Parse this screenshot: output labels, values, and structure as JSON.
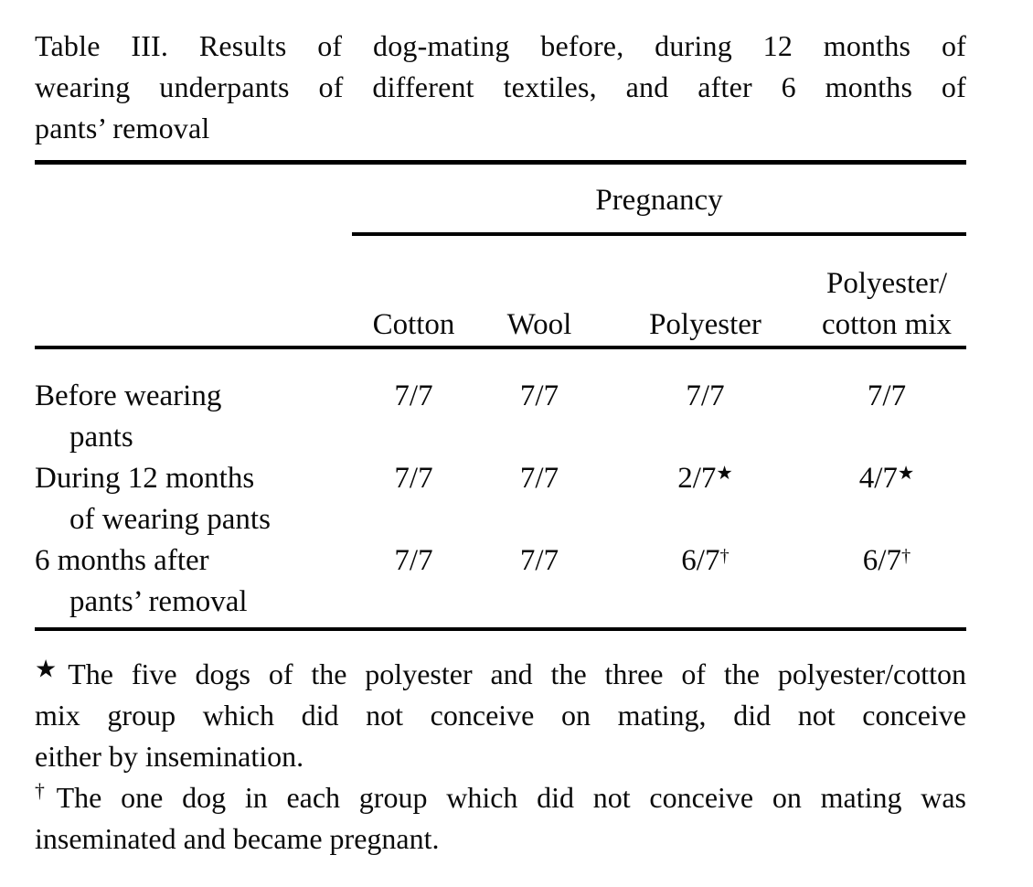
{
  "colors": {
    "background": "#ffffff",
    "text": "#0a0a0a",
    "rule": "#000000"
  },
  "title": {
    "lines": [
      "Table III. Results of dog-mating before, during 12 months of",
      "wearing underpants of different textiles, and after 6 months of",
      "pants’ removal"
    ]
  },
  "table": {
    "spanner": "Pregnancy",
    "columns": [
      {
        "line1": "",
        "line2": "Cotton"
      },
      {
        "line1": "",
        "line2": "Wool"
      },
      {
        "line1": "",
        "line2": "Polyester"
      },
      {
        "line1": "Polyester/",
        "line2": "cotton mix"
      }
    ],
    "rows": [
      {
        "label_line1": "Before wearing",
        "label_line2": "pants",
        "values": [
          {
            "v": "7/7",
            "sup": ""
          },
          {
            "v": "7/7",
            "sup": ""
          },
          {
            "v": "7/7",
            "sup": ""
          },
          {
            "v": "7/7",
            "sup": ""
          }
        ]
      },
      {
        "label_line1": "During 12 months",
        "label_line2": "of wearing pants",
        "values": [
          {
            "v": "7/7",
            "sup": ""
          },
          {
            "v": "7/7",
            "sup": ""
          },
          {
            "v": "2/7",
            "sup": "★"
          },
          {
            "v": "4/7",
            "sup": "★"
          }
        ]
      },
      {
        "label_line1": "6 months after",
        "label_line2": "pants’ removal",
        "values": [
          {
            "v": "7/7",
            "sup": ""
          },
          {
            "v": "7/7",
            "sup": ""
          },
          {
            "v": "6/7",
            "sup": "†"
          },
          {
            "v": "6/7",
            "sup": "†"
          }
        ]
      }
    ]
  },
  "footnotes": [
    {
      "marker": "★",
      "lines": [
        "The five dogs of the polyester and the three of the polyester/cotton",
        "mix group which did not conceive on mating, did not conceive",
        "either by insemination."
      ]
    },
    {
      "marker": "†",
      "lines": [
        "The one dog in each group which did not conceive on mating was",
        "inseminated and became pregnant."
      ]
    }
  ]
}
